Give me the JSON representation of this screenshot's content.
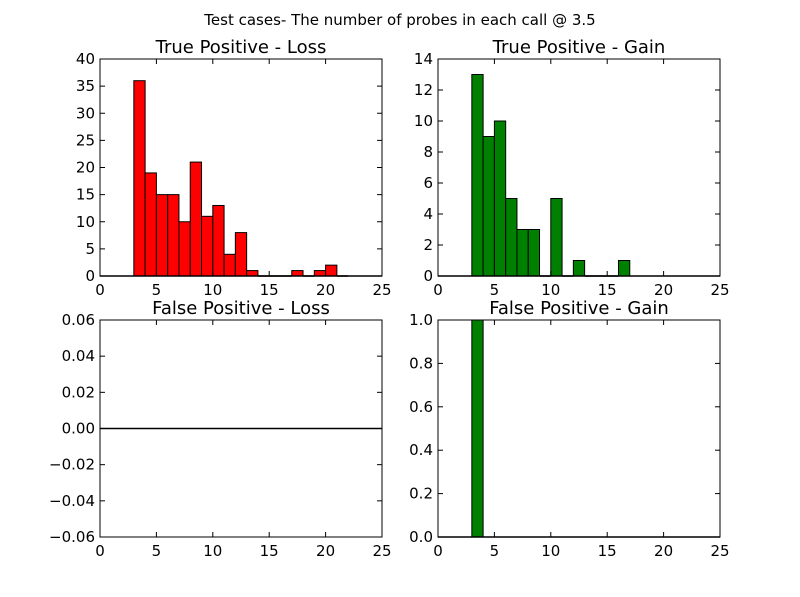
{
  "figure": {
    "title": "Test cases- The number of probes in each call @ 3.5"
  },
  "chart_data": [
    {
      "type": "bar",
      "title": "True Positive - Loss",
      "color": "#ff0000",
      "xlim": [
        0,
        25
      ],
      "ylim": [
        0,
        40
      ],
      "xticks": [
        0,
        5,
        10,
        15,
        20,
        25
      ],
      "yticks": [
        0,
        5,
        10,
        15,
        20,
        25,
        30,
        35,
        40
      ],
      "ytick_labels": [
        "0",
        "5",
        "10",
        "15",
        "20",
        "25",
        "30",
        "35",
        "40"
      ],
      "bin_edges": [
        3,
        4,
        5,
        6,
        7,
        8,
        9,
        10,
        11,
        12,
        13,
        14,
        15,
        16,
        17,
        18,
        19,
        20,
        21,
        22
      ],
      "values": [
        36,
        19,
        15,
        15,
        10,
        21,
        11,
        13,
        4,
        8,
        1,
        0,
        0,
        0,
        1,
        0,
        1,
        2,
        0
      ]
    },
    {
      "type": "bar",
      "title": "True Positive - Gain",
      "color": "#008000",
      "xlim": [
        0,
        25
      ],
      "ylim": [
        0,
        14
      ],
      "xticks": [
        0,
        5,
        10,
        15,
        20,
        25
      ],
      "yticks": [
        0,
        2,
        4,
        6,
        8,
        10,
        12,
        14
      ],
      "ytick_labels": [
        "0",
        "2",
        "4",
        "6",
        "8",
        "10",
        "12",
        "14"
      ],
      "bin_edges": [
        3,
        4,
        5,
        6,
        7,
        8,
        9,
        10,
        11,
        12,
        13,
        14,
        15,
        16,
        17
      ],
      "values": [
        13,
        9,
        10,
        5,
        3,
        3,
        0,
        5,
        0,
        1,
        0,
        0,
        0,
        1
      ]
    },
    {
      "type": "bar",
      "title": "False Positive - Loss",
      "color": "#ff0000",
      "xlim": [
        0,
        25
      ],
      "ylim": [
        -0.06,
        0.06
      ],
      "xticks": [
        0,
        5,
        10,
        15,
        20,
        25
      ],
      "yticks": [
        -0.06,
        -0.04,
        -0.02,
        0.0,
        0.02,
        0.04,
        0.06
      ],
      "ytick_labels": [
        "−0.06",
        "−0.04",
        "−0.02",
        "0.00",
        "0.02",
        "0.04",
        "0.06"
      ],
      "bin_edges": [],
      "values": [],
      "zero_line": true
    },
    {
      "type": "bar",
      "title": "False Positive - Gain",
      "color": "#008000",
      "xlim": [
        0,
        25
      ],
      "ylim": [
        0,
        1
      ],
      "xticks": [
        0,
        5,
        10,
        15,
        20,
        25
      ],
      "yticks": [
        0,
        0.2,
        0.4,
        0.6,
        0.8,
        1.0
      ],
      "ytick_labels": [
        "0.0",
        "0.2",
        "0.4",
        "0.6",
        "0.8",
        "1.0"
      ],
      "bin_edges": [
        3,
        4
      ],
      "values": [
        1
      ]
    }
  ]
}
